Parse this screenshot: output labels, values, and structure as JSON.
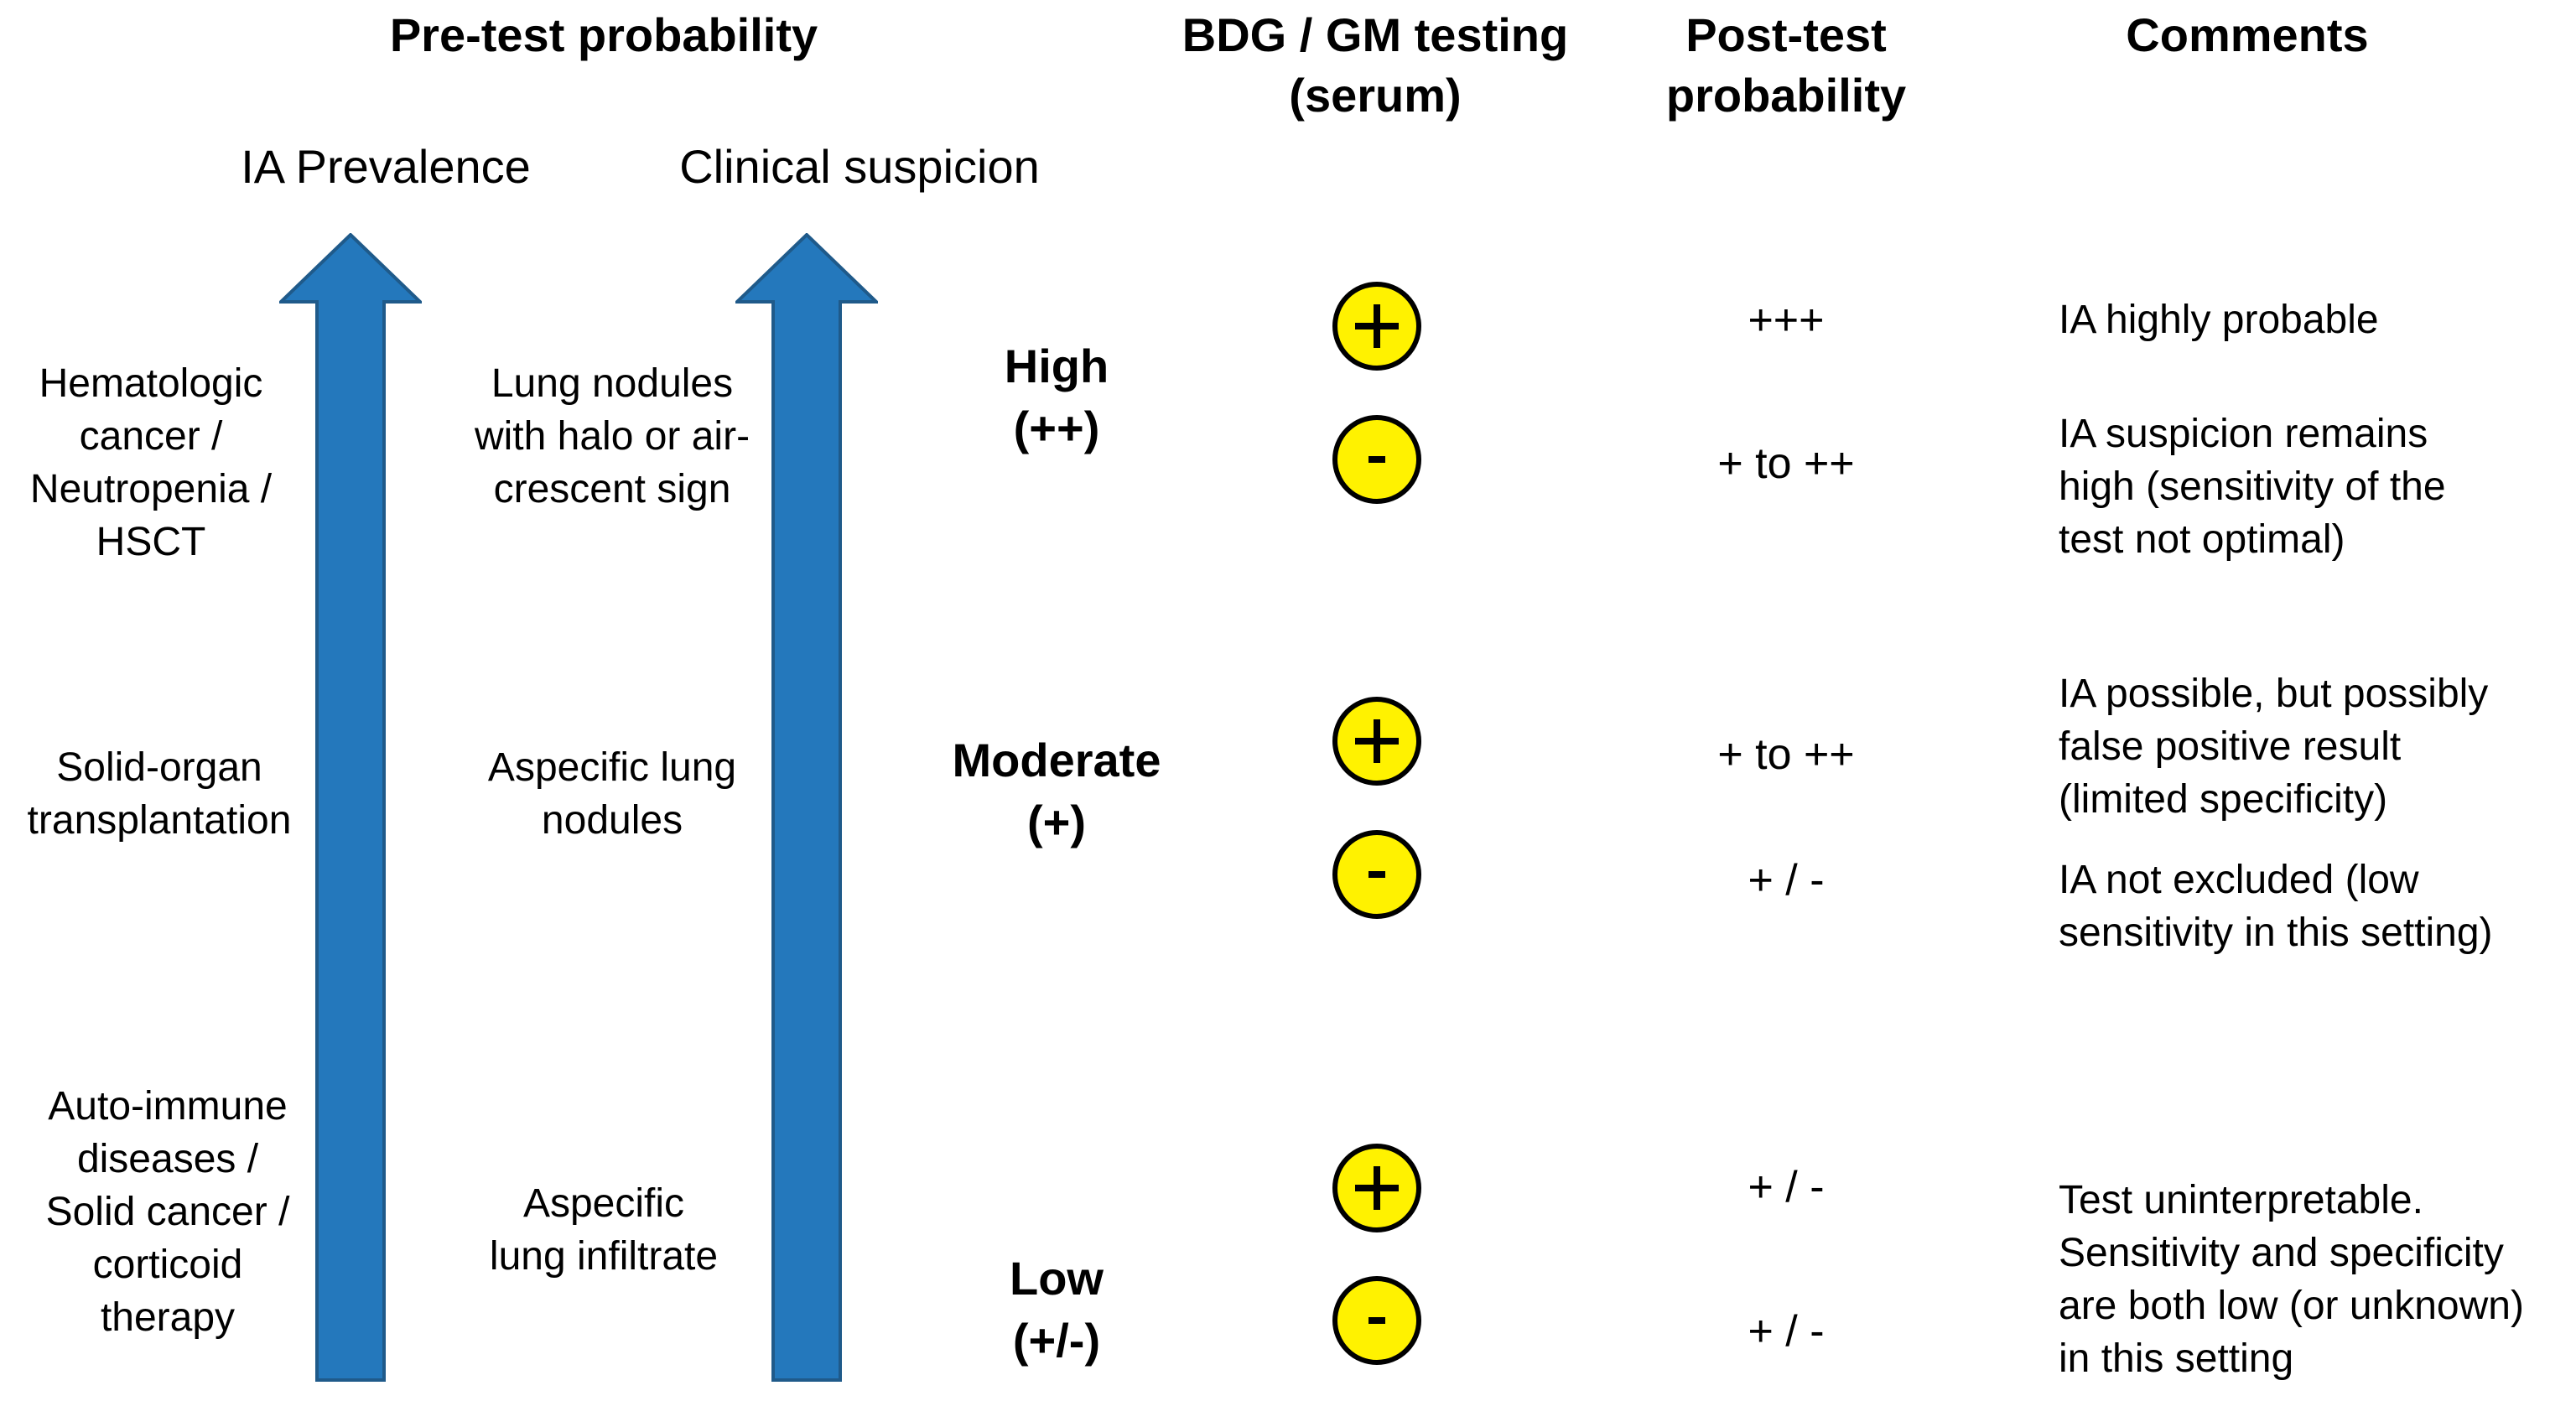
{
  "headers": {
    "pretest": "Pre-test probability",
    "testing": "BDG / GM testing\n(serum)",
    "posttest": "Post-test\nprobability",
    "comments": "Comments"
  },
  "subheaders": {
    "prevalence": "IA Prevalence",
    "suspicion": "Clinical suspicion"
  },
  "prevalence": [
    "Hematologic\ncancer /\nNeutropenia /\nHSCT",
    "Solid-organ\ntransplantation",
    "Auto-immune\ndiseases /\nSolid cancer /\ncorticoid\ntherapy"
  ],
  "suspicion": [
    "Lung nodules\nwith halo or air-\ncrescent sign",
    "Aspecific lung\nnodules",
    "Aspecific\nlung infiltrate"
  ],
  "levels": [
    "High\n(++)",
    "Moderate\n(+)",
    "Low\n(+/-)"
  ],
  "tests": [
    {
      "symbol": "+",
      "result": "+++"
    },
    {
      "symbol": "-",
      "result": "+ to ++"
    },
    {
      "symbol": "+",
      "result": "+ to ++"
    },
    {
      "symbol": "-",
      "result": "+ / -"
    },
    {
      "symbol": "+",
      "result": "+ / -"
    },
    {
      "symbol": "-",
      "result": "+ / -"
    }
  ],
  "comments": [
    "IA highly probable",
    "IA suspicion remains\nhigh (sensitivity of the\ntest not optimal)",
    "IA possible, but possibly\nfalse positive result\n(limited specificity)",
    "IA not excluded (low\nsensitivity in this setting)",
    "Test uninterpretable.\nSensitivity and specificity\nare both low (or unknown)\nin this setting"
  ],
  "colors": {
    "arrow_fill": "#2478BC",
    "arrow_stroke": "#1F5A8A",
    "badge_fill": "#FFF200",
    "badge_stroke": "#000000"
  },
  "icons": [
    "up-arrow-icon",
    "plus-circle-icon",
    "minus-circle-icon"
  ]
}
